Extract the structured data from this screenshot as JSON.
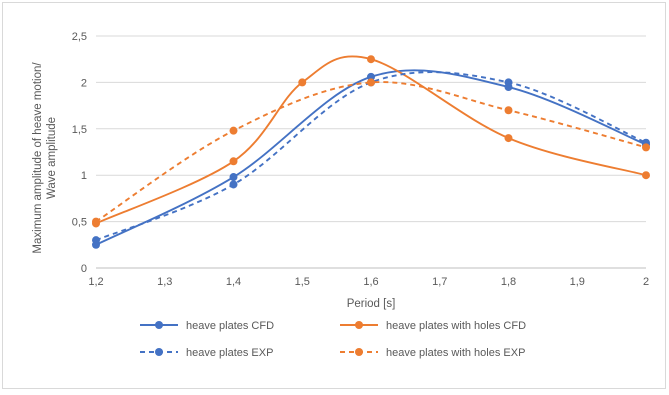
{
  "chart_data": {
    "type": "line",
    "title": "",
    "xlabel": "Period [s]",
    "ylabel": "Maximum amplitude of heave motion/ Wave amplitude",
    "ylabel_lines": [
      "Maximum amplitude of heave motion/",
      "Wave amplitude"
    ],
    "xlim": [
      1.2,
      2.0
    ],
    "ylim": [
      0,
      2.5
    ],
    "x_ticks": [
      1.2,
      1.3,
      1.4,
      1.5,
      1.6,
      1.7,
      1.8,
      1.9,
      2.0
    ],
    "x_tick_labels": [
      "1,2",
      "1,3",
      "1,4",
      "1,5",
      "1,6",
      "1,7",
      "1,8",
      "1,9",
      "2"
    ],
    "y_ticks": [
      0,
      0.5,
      1,
      1.5,
      2,
      2.5
    ],
    "y_tick_labels": [
      "0",
      "0,5",
      "1",
      "1,5",
      "2",
      "2,5"
    ],
    "grid": "horizontal",
    "legend_position": "bottom",
    "series": [
      {
        "name": "heave plates CFD",
        "color": "#4472c4",
        "dash": "solid",
        "x": [
          1.2,
          1.4,
          1.6,
          1.8,
          2.0
        ],
        "y": [
          0.25,
          0.98,
          2.06,
          1.95,
          1.33
        ]
      },
      {
        "name": "heave plates with holes CFD",
        "color": "#ed7d31",
        "dash": "solid",
        "x": [
          1.2,
          1.4,
          1.5,
          1.6,
          1.8,
          2.0
        ],
        "y": [
          0.48,
          1.15,
          2.0,
          2.25,
          1.4,
          1.0
        ]
      },
      {
        "name": "heave plates EXP",
        "color": "#4472c4",
        "dash": "dashed",
        "x": [
          1.2,
          1.4,
          1.6,
          1.8,
          2.0
        ],
        "y": [
          0.3,
          0.9,
          2.0,
          2.0,
          1.35
        ]
      },
      {
        "name": "heave plates with holes EXP",
        "color": "#ed7d31",
        "dash": "dashed",
        "x": [
          1.2,
          1.4,
          1.6,
          1.8,
          2.0
        ],
        "y": [
          0.5,
          1.48,
          2.0,
          1.7,
          1.3
        ]
      }
    ]
  }
}
